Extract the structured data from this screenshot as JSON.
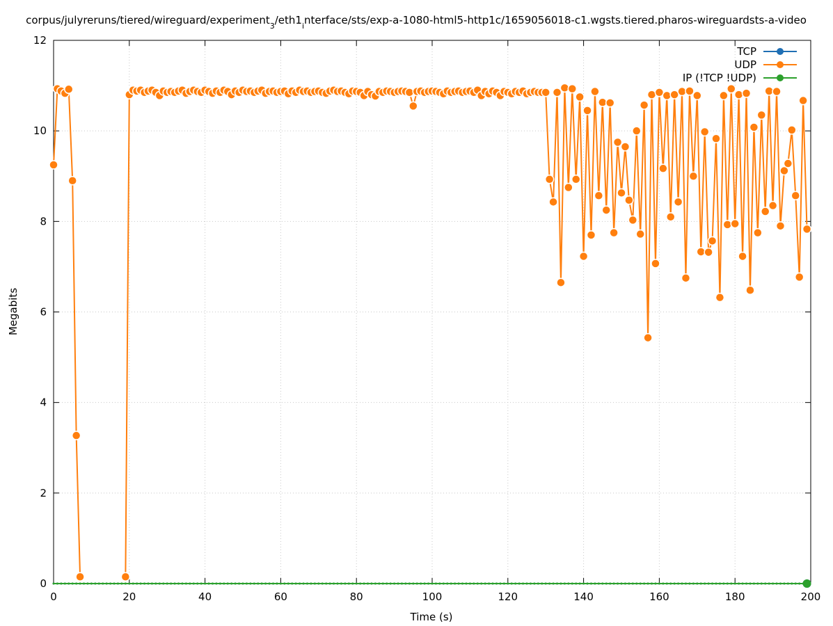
{
  "chart_data": {
    "type": "line",
    "title": [
      "corpus/julyreruns/tiered/wireguard/experiment",
      "3",
      "/eth1",
      "i",
      "nterface/sts/exp-a-1080-html5-http1c/1659056018-c1.wgsts.tiered.pharos-wireguardsts-a-video"
    ],
    "x_label": "Time (s)",
    "y_label": "Megabits",
    "xlim": [
      0,
      200
    ],
    "ylim": [
      0,
      12
    ],
    "xticks": [
      0,
      20,
      40,
      60,
      80,
      100,
      120,
      140,
      160,
      180,
      200
    ],
    "yticks": [
      0,
      2,
      4,
      6,
      8,
      10,
      12
    ],
    "grid": true,
    "legend": "top-right",
    "x": [
      0,
      1,
      2,
      3,
      4,
      5,
      6,
      7,
      8,
      9,
      10,
      11,
      12,
      13,
      14,
      15,
      16,
      17,
      18,
      19,
      20,
      21,
      22,
      23,
      24,
      25,
      26,
      27,
      28,
      29,
      30,
      31,
      32,
      33,
      34,
      35,
      36,
      37,
      38,
      39,
      40,
      41,
      42,
      43,
      44,
      45,
      46,
      47,
      48,
      49,
      50,
      51,
      52,
      53,
      54,
      55,
      56,
      57,
      58,
      59,
      60,
      61,
      62,
      63,
      64,
      65,
      66,
      67,
      68,
      69,
      70,
      71,
      72,
      73,
      74,
      75,
      76,
      77,
      78,
      79,
      80,
      81,
      82,
      83,
      84,
      85,
      86,
      87,
      88,
      89,
      90,
      91,
      92,
      93,
      94,
      95,
      96,
      97,
      98,
      99,
      100,
      101,
      102,
      103,
      104,
      105,
      106,
      107,
      108,
      109,
      110,
      111,
      112,
      113,
      114,
      115,
      116,
      117,
      118,
      119,
      120,
      121,
      122,
      123,
      124,
      125,
      126,
      127,
      128,
      129,
      130,
      131,
      132,
      133,
      134,
      135,
      136,
      137,
      138,
      139,
      140,
      141,
      142,
      143,
      144,
      145,
      146,
      147,
      148,
      149,
      150,
      151,
      152,
      153,
      154,
      155,
      156,
      157,
      158,
      159,
      160,
      161,
      162,
      163,
      164,
      165,
      166,
      167,
      168,
      169,
      170,
      171,
      172,
      173,
      174,
      175,
      176,
      177,
      178,
      179,
      180,
      181,
      182,
      183,
      184,
      185,
      186,
      187,
      188,
      189,
      190,
      191,
      192,
      193,
      194,
      195,
      196,
      197,
      198,
      199
    ],
    "series": [
      {
        "name": "TCP",
        "color": "#1f6fb4",
        "values": [
          0,
          0,
          0,
          0,
          0,
          0,
          0,
          0,
          0,
          0,
          0,
          0,
          0,
          0,
          0,
          0,
          0,
          0,
          0,
          0,
          0,
          0,
          0,
          0,
          0,
          0,
          0,
          0,
          0,
          0,
          0,
          0,
          0,
          0,
          0,
          0,
          0,
          0,
          0,
          0,
          0,
          0,
          0,
          0,
          0,
          0,
          0,
          0,
          0,
          0,
          0,
          0,
          0,
          0,
          0,
          0,
          0,
          0,
          0,
          0,
          0,
          0,
          0,
          0,
          0,
          0,
          0,
          0,
          0,
          0,
          0,
          0,
          0,
          0,
          0,
          0,
          0,
          0,
          0,
          0,
          0,
          0,
          0,
          0,
          0,
          0,
          0,
          0,
          0,
          0,
          0,
          0,
          0,
          0,
          0,
          0,
          0,
          0,
          0,
          0,
          0,
          0,
          0,
          0,
          0,
          0,
          0,
          0,
          0,
          0,
          0,
          0,
          0,
          0,
          0,
          0,
          0,
          0,
          0,
          0,
          0,
          0,
          0,
          0,
          0,
          0,
          0,
          0,
          0,
          0,
          0,
          0,
          0,
          0,
          0,
          0,
          0,
          0,
          0,
          0,
          0,
          0,
          0,
          0,
          0,
          0,
          0,
          0,
          0,
          0,
          0,
          0,
          0,
          0,
          0,
          0,
          0,
          0,
          0,
          0,
          0,
          0,
          0,
          0,
          0,
          0,
          0,
          0,
          0,
          0,
          0,
          0,
          0,
          0,
          0,
          0,
          0,
          0,
          0,
          0,
          0,
          0,
          0,
          0,
          0,
          0,
          0,
          0,
          0,
          0,
          0,
          0,
          0,
          0,
          0,
          0,
          0,
          0,
          0,
          0
        ]
      },
      {
        "name": "UDP",
        "color": "#ff7f0e",
        "values": [
          9.25,
          10.93,
          10.88,
          10.83,
          10.92,
          8.9,
          3.27,
          0.15,
          null,
          null,
          null,
          null,
          null,
          null,
          null,
          null,
          null,
          null,
          null,
          0.15,
          10.8,
          10.9,
          10.88,
          10.9,
          10.85,
          10.88,
          10.9,
          10.85,
          10.78,
          10.88,
          10.85,
          10.87,
          10.85,
          10.88,
          10.9,
          10.83,
          10.87,
          10.9,
          10.87,
          10.85,
          10.9,
          10.87,
          10.83,
          10.88,
          10.85,
          10.9,
          10.87,
          10.8,
          10.88,
          10.85,
          10.9,
          10.87,
          10.88,
          10.85,
          10.88,
          10.9,
          10.83,
          10.87,
          10.88,
          10.85,
          10.87,
          10.88,
          10.82,
          10.88,
          10.85,
          10.9,
          10.87,
          10.88,
          10.85,
          10.87,
          10.88,
          10.85,
          10.83,
          10.88,
          10.9,
          10.87,
          10.88,
          10.85,
          10.82,
          10.88,
          10.87,
          10.85,
          10.78,
          10.87,
          10.8,
          10.77,
          10.87,
          10.85,
          10.88,
          10.87,
          10.85,
          10.87,
          10.88,
          10.87,
          10.85,
          10.55,
          10.87,
          10.88,
          10.85,
          10.87,
          10.88,
          10.87,
          10.85,
          10.82,
          10.88,
          10.85,
          10.87,
          10.88,
          10.85,
          10.87,
          10.88,
          10.85,
          10.9,
          10.78,
          10.87,
          10.82,
          10.88,
          10.85,
          10.78,
          10.87,
          10.85,
          10.82,
          10.87,
          10.85,
          10.88,
          10.82,
          10.85,
          10.87,
          10.85,
          10.85,
          10.85,
          8.93,
          8.43,
          10.85,
          6.65,
          10.95,
          8.75,
          10.93,
          8.93,
          10.75,
          7.23,
          10.45,
          7.7,
          10.87,
          8.57,
          10.63,
          8.25,
          10.62,
          7.75,
          9.75,
          8.63,
          9.65,
          8.47,
          8.03,
          10.0,
          7.72,
          10.57,
          5.43,
          10.8,
          7.07,
          10.85,
          9.17,
          10.78,
          8.1,
          10.8,
          8.43,
          10.87,
          6.75,
          10.88,
          9.0,
          10.78,
          7.33,
          9.98,
          7.32,
          7.57,
          9.83,
          6.32,
          10.78,
          7.93,
          10.93,
          7.95,
          10.8,
          7.23,
          10.83,
          6.48,
          10.08,
          7.75,
          10.35,
          8.22,
          10.88,
          8.35,
          10.87,
          7.9,
          9.12,
          9.28,
          10.02,
          8.57,
          6.77,
          10.67,
          7.83
        ]
      },
      {
        "name": "IP (!TCP  !UDP)",
        "color": "#2ca02c",
        "values": [
          0,
          0,
          0,
          0,
          0,
          0,
          0,
          0,
          0,
          0,
          0,
          0,
          0,
          0,
          0,
          0,
          0,
          0,
          0,
          0,
          0,
          0,
          0,
          0,
          0,
          0,
          0,
          0,
          0,
          0,
          0,
          0,
          0,
          0,
          0,
          0,
          0,
          0,
          0,
          0,
          0,
          0,
          0,
          0,
          0,
          0,
          0,
          0,
          0,
          0,
          0,
          0,
          0,
          0,
          0,
          0,
          0,
          0,
          0,
          0,
          0,
          0,
          0,
          0,
          0,
          0,
          0,
          0,
          0,
          0,
          0,
          0,
          0,
          0,
          0,
          0,
          0,
          0,
          0,
          0,
          0,
          0,
          0,
          0,
          0,
          0,
          0,
          0,
          0,
          0,
          0,
          0,
          0,
          0,
          0,
          0,
          0,
          0,
          0,
          0,
          0,
          0,
          0,
          0,
          0,
          0,
          0,
          0,
          0,
          0,
          0,
          0,
          0,
          0,
          0,
          0,
          0,
          0,
          0,
          0,
          0,
          0,
          0,
          0,
          0,
          0,
          0,
          0,
          0,
          0,
          0,
          0,
          0,
          0,
          0,
          0,
          0,
          0,
          0,
          0,
          0,
          0,
          0,
          0,
          0,
          0,
          0,
          0,
          0,
          0,
          0,
          0,
          0,
          0,
          0,
          0,
          0,
          0,
          0,
          0,
          0,
          0,
          0,
          0,
          0,
          0,
          0,
          0,
          0,
          0,
          0,
          0,
          0,
          0,
          0,
          0,
          0,
          0,
          0,
          0,
          0,
          0,
          0,
          0,
          0,
          0,
          0,
          0,
          0,
          0,
          0,
          0,
          0,
          0,
          0,
          0,
          0,
          0,
          0,
          0
        ]
      }
    ]
  }
}
